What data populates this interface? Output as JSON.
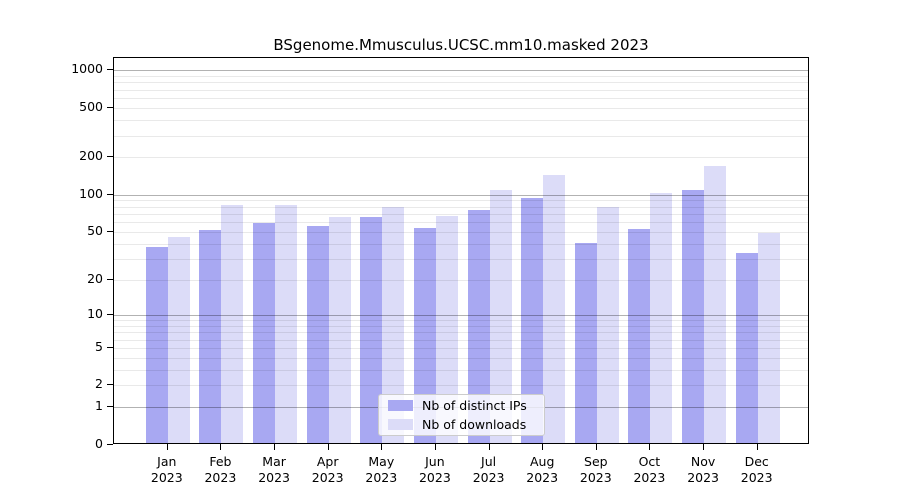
{
  "title": "BSgenome.Mmusculus.UCSC.mm10.masked 2023",
  "colors": {
    "distinct_ips_bar": "#a8a8f2",
    "downloads_bar": "#dcdcf8",
    "major_gridline": "#b4b4b4",
    "minor_gridline": "#ebebeb",
    "axis": "#000000",
    "background": "#ffffff",
    "legend_border": "#cccccc"
  },
  "legend": {
    "items": [
      {
        "label": "Nb of distinct IPs",
        "color": "#a8a8f2"
      },
      {
        "label": "Nb of downloads",
        "color": "#dcdcf8"
      }
    ]
  },
  "x_axis": {
    "year_line": "2023",
    "months": [
      "Jan",
      "Feb",
      "Mar",
      "Apr",
      "May",
      "Jun",
      "Jul",
      "Aug",
      "Sep",
      "Oct",
      "Nov",
      "Dec"
    ]
  },
  "y_axis": {
    "tick_labels": [
      "0",
      "1",
      "2",
      "5",
      "10",
      "20",
      "50",
      "100",
      "200",
      "500",
      "1000"
    ]
  },
  "chart_data": {
    "type": "bar",
    "title": "BSgenome.Mmusculus.UCSC.mm10.masked 2023",
    "categories": [
      "Jan",
      "Feb",
      "Mar",
      "Apr",
      "May",
      "Jun",
      "Jul",
      "Aug",
      "Sep",
      "Oct",
      "Nov",
      "Dec"
    ],
    "year": "2023",
    "series": [
      {
        "name": "Nb of distinct IPs",
        "color": "#a8a8f2",
        "values": [
          36,
          50,
          57,
          54,
          63,
          52,
          73,
          91,
          39,
          51,
          105,
          32
        ]
      },
      {
        "name": "Nb of downloads",
        "color": "#dcdcf8",
        "values": [
          44,
          79,
          80,
          64,
          77,
          65,
          106,
          140,
          77,
          100,
          165,
          47
        ]
      }
    ],
    "xlabel": "",
    "ylabel": "",
    "y_scale": "log10(value+1)",
    "y_ticks": [
      0,
      1,
      2,
      5,
      10,
      20,
      50,
      100,
      200,
      500,
      1000
    ],
    "ylim": [
      0,
      1260
    ],
    "grid": true,
    "grid_major_at": [
      1,
      10,
      100,
      1000
    ],
    "legend_position": "bottom-center"
  }
}
